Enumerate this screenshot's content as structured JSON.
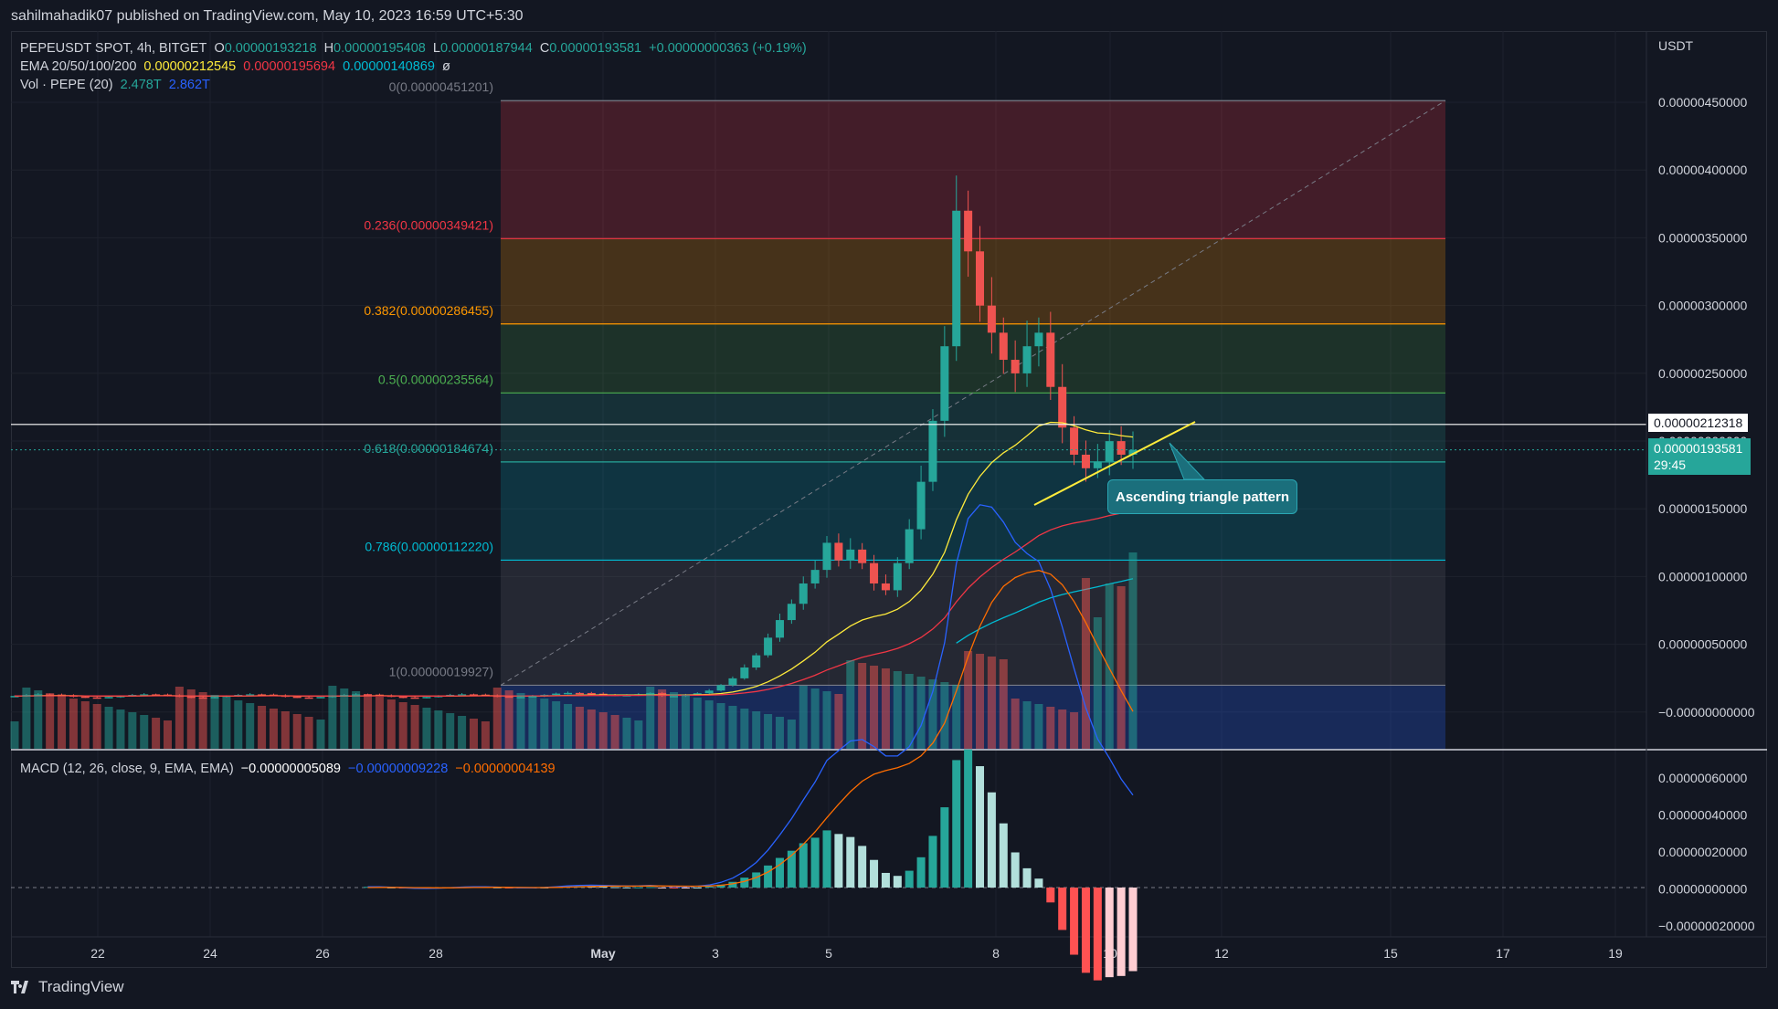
{
  "header": {
    "published": "sahilmahadik07 published on TradingView.com, May 10, 2023 16:59 UTC+5:30"
  },
  "legend": {
    "symbol": "PEPEUSDT SPOT, 4h, BITGET",
    "o_label": "O",
    "o": "0.00000193218",
    "h_label": "H",
    "h": "0.00000195408",
    "l_label": "L",
    "l": "0.00000187944",
    "c_label": "C",
    "c": "0.00000193581",
    "change": "+0.00000000363 (+0.19%)",
    "ema_label": "EMA 20/50/100/200",
    "ema20": "0.00000212545",
    "ema50": "0.00000195694",
    "ema100": "0.00000140869",
    "ema200": "ø",
    "vol_label": "Vol · PEPE (20)",
    "vol1": "2.478T",
    "vol2": "2.862T",
    "macd_label": "MACD (12, 26, close, 9, EMA, EMA)",
    "macd1": "−0.00000005089",
    "macd2": "−0.00000009228",
    "macd3": "−0.00000004139"
  },
  "price_axis": {
    "currency": "USDT",
    "ticks": [
      "0.00000450000",
      "0.00000400000",
      "0.00000350000",
      "0.00000300000",
      "0.00000250000",
      "0.00000200000",
      "0.00000150000",
      "0.00000100000",
      "0.00000050000",
      "−0.00000000000"
    ],
    "horizontal_line_label": "0.00000212318",
    "last_price_label": "0.00000193581",
    "countdown": "29:45"
  },
  "macd_axis": {
    "ticks": [
      "0.00000060000",
      "0.00000040000",
      "0.00000020000",
      "0.00000000000",
      "−0.00000020000"
    ]
  },
  "time_axis": {
    "ticks": [
      "22",
      "24",
      "26",
      "28",
      "May",
      "3",
      "5",
      "8",
      "10",
      "12",
      "15",
      "17",
      "19"
    ]
  },
  "fib": {
    "levels": [
      {
        "label": "0(0.00000451201)",
        "ratio": 0
      },
      {
        "label": "0.236(0.00000349421)",
        "ratio": 0.236
      },
      {
        "label": "0.382(0.00000286455)",
        "ratio": 0.382
      },
      {
        "label": "0.5(0.00000235564)",
        "ratio": 0.5
      },
      {
        "label": "0.618(0.00000184674)",
        "ratio": 0.618
      },
      {
        "label": "0.786(0.00000112220)",
        "ratio": 0.786
      },
      {
        "label": "1(0.00000019927)",
        "ratio": 1
      }
    ],
    "colors": [
      "#f23645",
      "#ff9800",
      "#4caf50",
      "#26a69a",
      "#00bcd4",
      "#787b86",
      "#2962ff"
    ]
  },
  "annotation": {
    "text": "Ascending triangle pattern"
  },
  "footer": {
    "brand": "TradingView"
  },
  "colors": {
    "up": "#26a69a",
    "down": "#ef5350",
    "ema20": "#ffeb3b",
    "ema50": "#f23645",
    "ema100": "#00bcd4",
    "macd": "#2962ff",
    "signal": "#ff6d00"
  },
  "chart_data": {
    "type": "candlestick",
    "title": "PEPEUSDT SPOT, 4h, BITGET",
    "ylabel": "USDT",
    "ylim": [
      -3e-07,
      4.8e-06
    ],
    "x_ticks": [
      "22",
      "24",
      "26",
      "28",
      "May",
      "3",
      "5",
      "8",
      "10",
      "12",
      "15",
      "17",
      "19"
    ],
    "close_series": [
      1.2e-07,
      1.2e-07,
      1.3e-07,
      1.4e-07,
      1.6e-07,
      2e-07,
      2.5e-07,
      3.3e-07,
      4.2e-07,
      5.5e-07,
      6.8e-07,
      8e-07,
      9.5e-07,
      1.05e-06,
      1.25e-06,
      1.12e-06,
      1.2e-06,
      1.1e-06,
      9.5e-07,
      9e-07,
      1.1e-06,
      1.35e-06,
      1.7e-06,
      2.15e-06,
      2.7e-06,
      3.7e-06,
      3.4e-06,
      3e-06,
      2.8e-06,
      2.6e-06,
      2.5e-06,
      2.7e-06,
      2.8e-06,
      2.4e-06,
      2.1e-06,
      1.9e-06,
      1.8e-06,
      1.85e-06,
      2e-06,
      1.9e-06,
      1.93581e-06
    ],
    "ema": [
      {
        "name": "EMA 20",
        "last": 2.12545e-06
      },
      {
        "name": "EMA 50",
        "last": 1.95694e-06
      },
      {
        "name": "EMA 100",
        "last": 1.40869e-06
      }
    ],
    "horizontal_line": 2.12318e-06,
    "last_price": 1.93581e-06
  }
}
